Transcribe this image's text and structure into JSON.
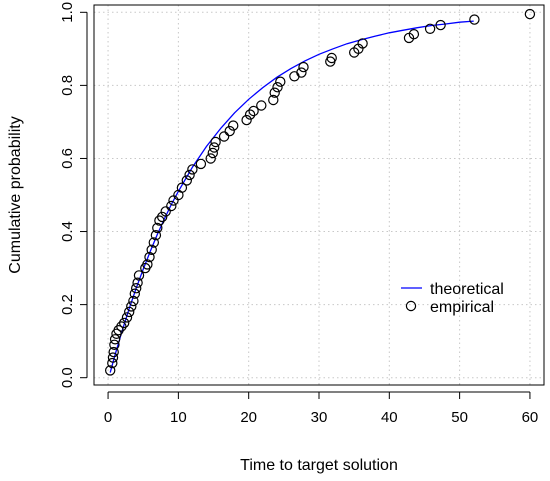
{
  "chart_data": {
    "type": "scatter",
    "xlabel": "Time to target solution",
    "ylabel": "Cumulative probability",
    "xlim": [
      -2,
      62
    ],
    "ylim": [
      -0.02,
      1.02
    ],
    "xticks": [
      0,
      10,
      20,
      30,
      40,
      50,
      60
    ],
    "yticks": [
      0.0,
      0.2,
      0.4,
      0.6,
      0.8,
      1.0
    ],
    "xtick_labels": [
      "0",
      "10",
      "20",
      "30",
      "40",
      "50",
      "60"
    ],
    "ytick_labels": [
      "0.0",
      "0.2",
      "0.4",
      "0.6",
      "0.8",
      "1.0"
    ],
    "grid": true,
    "legend_position": "right",
    "colors": {
      "theoretical": "#0000ff",
      "empirical": "#000000"
    },
    "series": [
      {
        "name": "theoretical",
        "type": "line",
        "model": "1 - exp(-(t - 0.1)/13.9)",
        "x": [
          0.3,
          1,
          2,
          3,
          4,
          5,
          6,
          7,
          8,
          9,
          10,
          12,
          14,
          16,
          18,
          20,
          22,
          24,
          26,
          28,
          30,
          32,
          34,
          36,
          38,
          40,
          42,
          44,
          46,
          48,
          50,
          52
        ],
        "y": [
          0.014,
          0.063,
          0.128,
          0.189,
          0.245,
          0.297,
          0.346,
          0.392,
          0.434,
          0.474,
          0.51,
          0.576,
          0.633,
          0.682,
          0.725,
          0.762,
          0.794,
          0.822,
          0.846,
          0.867,
          0.885,
          0.9,
          0.914,
          0.925,
          0.935,
          0.944,
          0.951,
          0.958,
          0.964,
          0.968,
          0.973,
          0.976
        ]
      },
      {
        "name": "empirical",
        "type": "scatter",
        "points": [
          [
            0.3,
            0.02
          ],
          [
            0.6,
            0.04
          ],
          [
            0.7,
            0.055
          ],
          [
            0.8,
            0.07
          ],
          [
            0.9,
            0.09
          ],
          [
            1.0,
            0.105
          ],
          [
            1.2,
            0.12
          ],
          [
            1.5,
            0.13
          ],
          [
            1.9,
            0.14
          ],
          [
            2.3,
            0.15
          ],
          [
            2.7,
            0.165
          ],
          [
            3.0,
            0.18
          ],
          [
            3.3,
            0.195
          ],
          [
            3.6,
            0.21
          ],
          [
            3.8,
            0.23
          ],
          [
            4.0,
            0.245
          ],
          [
            4.2,
            0.26
          ],
          [
            4.4,
            0.28
          ],
          [
            5.3,
            0.3
          ],
          [
            5.6,
            0.31
          ],
          [
            5.9,
            0.33
          ],
          [
            6.2,
            0.35
          ],
          [
            6.5,
            0.37
          ],
          [
            6.8,
            0.39
          ],
          [
            7.0,
            0.41
          ],
          [
            7.3,
            0.43
          ],
          [
            7.7,
            0.44
          ],
          [
            8.2,
            0.455
          ],
          [
            9.0,
            0.47
          ],
          [
            9.3,
            0.485
          ],
          [
            10.0,
            0.5
          ],
          [
            10.5,
            0.52
          ],
          [
            11.2,
            0.54
          ],
          [
            11.6,
            0.555
          ],
          [
            12.0,
            0.57
          ],
          [
            13.2,
            0.585
          ],
          [
            14.6,
            0.6
          ],
          [
            14.9,
            0.615
          ],
          [
            15.1,
            0.63
          ],
          [
            15.3,
            0.645
          ],
          [
            16.5,
            0.66
          ],
          [
            17.3,
            0.675
          ],
          [
            17.8,
            0.69
          ],
          [
            19.7,
            0.705
          ],
          [
            20.2,
            0.72
          ],
          [
            20.7,
            0.73
          ],
          [
            21.8,
            0.745
          ],
          [
            23.5,
            0.76
          ],
          [
            23.7,
            0.78
          ],
          [
            24.1,
            0.795
          ],
          [
            24.5,
            0.81
          ],
          [
            26.5,
            0.825
          ],
          [
            27.5,
            0.835
          ],
          [
            27.8,
            0.85
          ],
          [
            31.6,
            0.865
          ],
          [
            31.8,
            0.875
          ],
          [
            35.0,
            0.89
          ],
          [
            35.6,
            0.9
          ],
          [
            36.2,
            0.915
          ],
          [
            42.8,
            0.93
          ],
          [
            43.5,
            0.94
          ],
          [
            45.8,
            0.955
          ],
          [
            47.3,
            0.965
          ],
          [
            52.1,
            0.98
          ],
          [
            60.0,
            0.995
          ]
        ]
      }
    ]
  }
}
